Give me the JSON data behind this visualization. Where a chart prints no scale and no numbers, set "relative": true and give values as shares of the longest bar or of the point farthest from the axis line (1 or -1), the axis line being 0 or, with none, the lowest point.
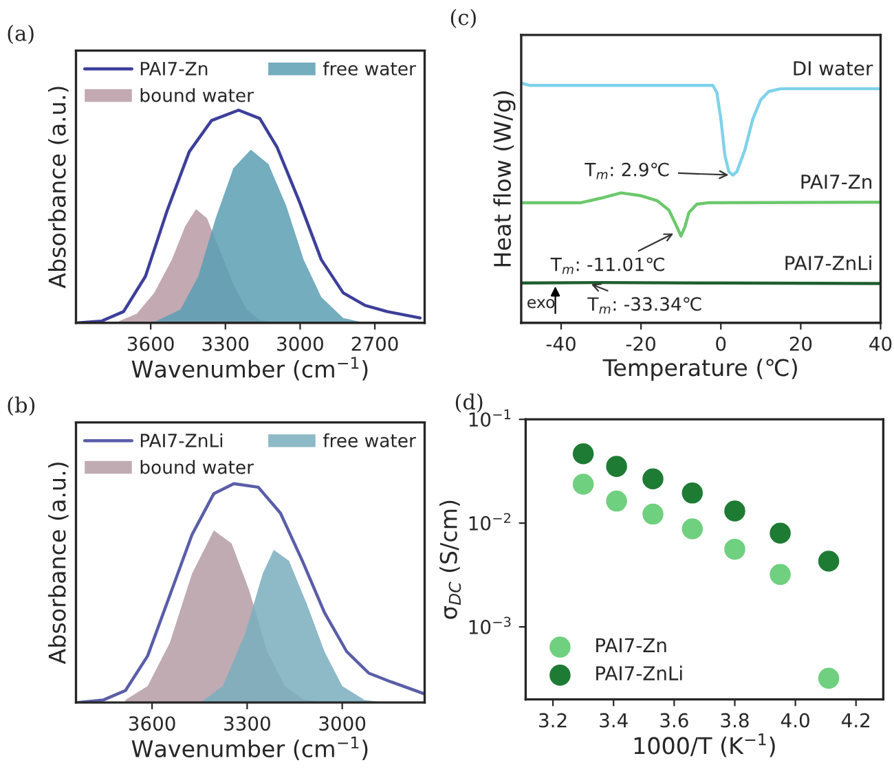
{
  "chart_data": [
    {
      "type": "area",
      "title": "(a)",
      "xlabel": "Wavenumber (cm$^{−1}$)",
      "ylabel": "Absorbance (a.u.)",
      "relative": true,
      "xlim": [
        3900,
        2500
      ],
      "xticks": [
        3600,
        3300,
        3000,
        2700
      ],
      "tick_labels": "x",
      "legend": "top",
      "grid": false,
      "series": [
        {
          "name": "PAI7-Zn",
          "type": "line",
          "color": "#3d3f9a",
          "x": [
            3891,
            3798,
            3709,
            3621,
            3533,
            3445,
            3356,
            3247,
            3162,
            3092,
            3003,
            2915,
            2827,
            2739,
            2650,
            2518
          ],
          "values": [
            0,
            0.008,
            0.053,
            0.219,
            0.531,
            0.805,
            0.951,
            1,
            0.961,
            0.824,
            0.57,
            0.297,
            0.141,
            0.082,
            0.053,
            0.023
          ]
        },
        {
          "name": "bound water",
          "type": "area",
          "color": "#b89aa4",
          "x": [
            3727,
            3656,
            3586,
            3515,
            3462,
            3418,
            3374,
            3321,
            3268,
            3215,
            3162,
            3092
          ],
          "values": [
            0.008,
            0.043,
            0.141,
            0.297,
            0.453,
            0.535,
            0.492,
            0.336,
            0.18,
            0.063,
            0.014,
            0
          ]
        },
        {
          "name": "free water",
          "type": "area",
          "color": "#5a9fb3",
          "x": [
            3586,
            3480,
            3409,
            3339,
            3268,
            3198,
            3127,
            3056,
            2986,
            2915,
            2827,
            2739
          ],
          "values": [
            0.004,
            0.063,
            0.219,
            0.492,
            0.727,
            0.814,
            0.746,
            0.551,
            0.297,
            0.121,
            0.023,
            0
          ]
        }
      ]
    },
    {
      "type": "area",
      "title": "(b)",
      "xlabel": "Wavenumber (cm$^{−1}$)",
      "ylabel": "Absorbance (a.u.)",
      "relative": true,
      "xlim": [
        3840,
        2740
      ],
      "xticks": [
        3600,
        3300,
        3000
      ],
      "tick_labels": "x",
      "legend": "top",
      "grid": false,
      "series": [
        {
          "name": "PAI7-ZnLi",
          "type": "line",
          "color": "#5a5ea8",
          "x": [
            3834,
            3753,
            3684,
            3614,
            3544,
            3474,
            3405,
            3342,
            3265,
            3195,
            3126,
            3056,
            2986,
            2916,
            2847,
            2742
          ],
          "values": [
            0,
            0.012,
            0.055,
            0.213,
            0.49,
            0.767,
            0.955,
            1,
            0.984,
            0.866,
            0.648,
            0.411,
            0.233,
            0.134,
            0.095,
            0.04
          ]
        },
        {
          "name": "bound water",
          "type": "area",
          "color": "#b59ca6",
          "x": [
            3684,
            3614,
            3544,
            3474,
            3405,
            3349,
            3293,
            3237,
            3181,
            3126,
            3056
          ],
          "values": [
            0.012,
            0.075,
            0.273,
            0.589,
            0.787,
            0.727,
            0.51,
            0.233,
            0.075,
            0.016,
            0
          ]
        },
        {
          "name": "free water",
          "type": "area",
          "color": "#7aaebd",
          "x": [
            3447,
            3377,
            3307,
            3251,
            3216,
            3168,
            3112,
            3056,
            3000,
            2930,
            2861
          ],
          "values": [
            0,
            0.075,
            0.312,
            0.589,
            0.698,
            0.648,
            0.451,
            0.233,
            0.075,
            0.012,
            0
          ]
        }
      ]
    },
    {
      "type": "line",
      "title": "(c)",
      "xlabel": "Temperature (℃)",
      "ylabel": "Heat flow (W/g)",
      "relative": true,
      "xlim": [
        -50,
        40
      ],
      "xticks": [
        -40,
        -20,
        0,
        20,
        40
      ],
      "tick_labels": "x",
      "legend": false,
      "grid": false,
      "series": [
        {
          "name": "DI water",
          "color": "#7fd2ea",
          "x": [
            -50,
            -48,
            -2,
            -1,
            0,
            1,
            2,
            3,
            4,
            6,
            8,
            10,
            12,
            15,
            40
          ],
          "values": [
            1,
            0.99,
            0.99,
            0.96,
            0.85,
            0.7,
            0.63,
            0.616,
            0.63,
            0.72,
            0.85,
            0.93,
            0.965,
            0.976,
            0.976
          ]
        },
        {
          "name": "PAI7-Zn",
          "color": "#6cc86c",
          "x": [
            -50,
            -35,
            -30,
            -25,
            -20,
            -16,
            -13,
            -11,
            -10,
            -9,
            -8,
            -6,
            -3,
            40
          ],
          "values": [
            0.501,
            0.501,
            0.52,
            0.542,
            0.53,
            0.51,
            0.47,
            0.4,
            0.362,
            0.4,
            0.46,
            0.495,
            0.501,
            0.503
          ]
        },
        {
          "name": "PAI7-ZnLi",
          "color": "#1f5f2f",
          "x": [
            -50,
            -30,
            0,
            40
          ],
          "values": [
            0.166,
            0.168,
            0.166,
            0.164
          ]
        }
      ],
      "annotations": [
        {
          "text": "T$_{m}$: 2.9℃",
          "x": 2.9,
          "y": 0.616
        },
        {
          "text": "T$_{m}$: -11.01℃",
          "x": -11.01,
          "y": 0.38
        },
        {
          "text": "T$_{m}$: -33.34℃",
          "x": -33.34,
          "y": 0.167
        },
        "exo"
      ]
    },
    {
      "type": "scatter",
      "title": "(d)",
      "xlabel": "1000/T (K$^{−1}$)",
      "ylabel": "σ$_{DC}$ (S/cm)",
      "log": "y",
      "xlim": [
        3.11,
        4.29
      ],
      "xticks": [
        3.2,
        3.4,
        3.6,
        3.8,
        {
          "value": 4.0,
          "label": "4.0"
        },
        4.2
      ],
      "ylim": [
        0.0002,
        0.1
      ],
      "yticks": [
        {
          "value": 0.001,
          "label": "10$^{−3}$"
        },
        {
          "value": 0.01,
          "label": "10$^{−2}$"
        },
        {
          "value": 0.1,
          "label": "10$^{−1}$"
        }
      ],
      "marker": "circle",
      "legend": "bottom left",
      "grid": false,
      "series": [
        {
          "name": "PAI7-Zn",
          "color": "#6fd07f",
          "x": [
            3.3,
            3.41,
            3.53,
            3.66,
            3.8,
            3.95,
            4.11
          ],
          "values": [
            0.0237,
            0.0163,
            0.0122,
            0.0088,
            0.0056,
            0.0032,
            0.00032
          ]
        },
        {
          "name": "PAI7-ZnLi",
          "color": "#1e7b34",
          "x": [
            3.3,
            3.41,
            3.53,
            3.66,
            3.8,
            3.95,
            4.11
          ],
          "values": [
            0.0466,
            0.0352,
            0.0267,
            0.0195,
            0.0131,
            0.008,
            0.0043
          ]
        }
      ]
    }
  ]
}
